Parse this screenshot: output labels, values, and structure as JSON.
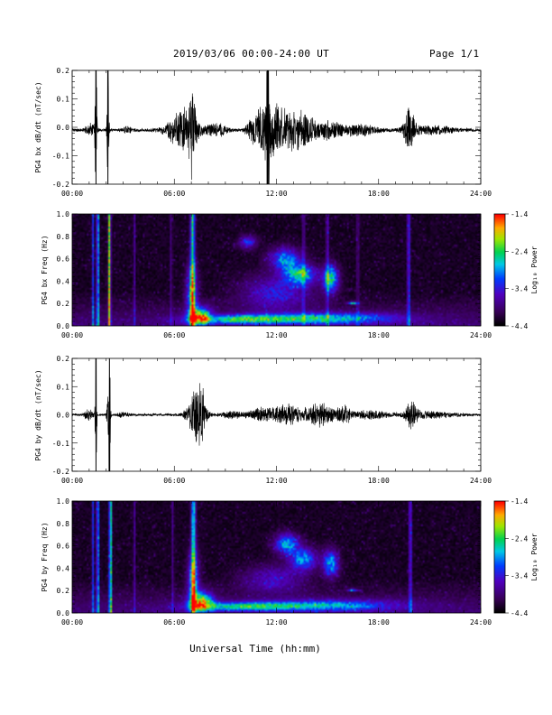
{
  "page": {
    "title": "2019/03/06  00:00-24:00 UT",
    "page_number": "Page 1/1"
  },
  "colors": {
    "background": "#ffffff",
    "trace": "#000000",
    "spectrogram_floor": "#000000"
  },
  "chart_data": [
    {
      "type": "line",
      "panel": "bx-waveform",
      "ylabel": "PG4 bx dB/dt (nT/sec)",
      "xlim_hours": [
        0,
        24
      ],
      "ylim": [
        -0.2,
        0.2
      ],
      "y_ticks": [
        "-0.2",
        "-0.1",
        "0.0",
        "0.1",
        "0.2"
      ],
      "x_ticks": [
        "00:00",
        "06:00",
        "12:00",
        "18:00",
        "24:00"
      ],
      "baseline": -0.01,
      "noise": 0.006,
      "bursts": [
        {
          "t": 1.1,
          "width": 0.4,
          "amp": 0.025
        },
        {
          "t": 1.4,
          "width": 0.08,
          "amp": 0.3,
          "clip": true
        },
        {
          "t": 2.1,
          "width": 0.08,
          "amp": 0.3,
          "clip": true
        },
        {
          "t": 3.2,
          "width": 0.4,
          "amp": 0.012
        },
        {
          "t": 6.5,
          "width": 1.2,
          "amp": 0.08
        },
        {
          "t": 7.05,
          "width": 0.25,
          "amp": 0.17
        },
        {
          "t": 8.5,
          "width": 0.8,
          "amp": 0.025
        },
        {
          "t": 10.6,
          "width": 0.5,
          "amp": 0.04
        },
        {
          "t": 11.35,
          "width": 0.8,
          "amp": 0.09
        },
        {
          "t": 11.5,
          "width": 0.12,
          "amp": 0.28,
          "clip": true
        },
        {
          "t": 12.2,
          "width": 1.0,
          "amp": 0.07
        },
        {
          "t": 13.5,
          "width": 1.3,
          "amp": 0.07
        },
        {
          "t": 15.2,
          "width": 0.8,
          "amp": 0.035
        },
        {
          "t": 16.8,
          "width": 1.5,
          "amp": 0.02
        },
        {
          "t": 19.8,
          "width": 0.45,
          "amp": 0.08
        },
        {
          "t": 21.0,
          "width": 2.0,
          "amp": 0.015
        }
      ]
    },
    {
      "type": "heatmap",
      "panel": "bx-spectrogram",
      "ylabel": "PG4 bx Freq (Hz)",
      "xlim_hours": [
        0,
        24
      ],
      "ylim": [
        0,
        1.0
      ],
      "y_ticks": [
        "0.0",
        "0.2",
        "0.4",
        "0.6",
        "0.8",
        "1.0"
      ],
      "x_ticks": [
        "00:00",
        "06:00",
        "12:00",
        "18:00",
        "24:00"
      ],
      "colorbar": {
        "label": "Log₁₀ Power",
        "range": [
          -4.4,
          -1.4
        ],
        "ticks": [
          "-1.4",
          "-2.4",
          "-3.4",
          "-4.4"
        ]
      },
      "stripes": [
        {
          "t": 1.15,
          "width": 0.05,
          "level": 0.45
        },
        {
          "t": 1.45,
          "width": 0.06,
          "level": 0.8
        },
        {
          "t": 2.15,
          "width": 0.07,
          "level": 0.85
        },
        {
          "t": 3.6,
          "width": 0.05,
          "level": 0.25
        },
        {
          "t": 5.8,
          "width": 0.05,
          "level": 0.25
        },
        {
          "t": 7.05,
          "width": 0.13,
          "level": 0.65
        },
        {
          "t": 13.6,
          "width": 0.06,
          "level": 0.3
        },
        {
          "t": 15.0,
          "width": 0.06,
          "level": 0.35
        },
        {
          "t": 16.8,
          "width": 0.05,
          "level": 0.3
        },
        {
          "t": 19.8,
          "width": 0.08,
          "level": 0.4
        }
      ],
      "blobs": [
        {
          "t": 7.5,
          "f": 0.08,
          "st": 0.6,
          "sf": 0.08,
          "level": 0.85
        },
        {
          "t": 7.0,
          "f": 0.3,
          "st": 0.35,
          "sf": 0.25,
          "level": 0.5
        },
        {
          "t": 10.0,
          "f": 0.05,
          "st": 3.0,
          "sf": 0.04,
          "level": 0.6
        },
        {
          "t": 15.0,
          "f": 0.06,
          "st": 4.0,
          "sf": 0.05,
          "level": 0.55
        },
        {
          "t": 12.5,
          "f": 0.6,
          "st": 0.9,
          "sf": 0.1,
          "level": 0.55
        },
        {
          "t": 13.4,
          "f": 0.46,
          "st": 0.9,
          "sf": 0.09,
          "level": 0.68
        },
        {
          "t": 15.2,
          "f": 0.42,
          "st": 0.45,
          "sf": 0.12,
          "level": 0.7
        },
        {
          "t": 10.3,
          "f": 0.75,
          "st": 0.5,
          "sf": 0.06,
          "level": 0.4
        },
        {
          "t": 12.0,
          "f": 0.3,
          "st": 2.0,
          "sf": 0.15,
          "level": 0.35
        },
        {
          "t": 16.5,
          "f": 0.2,
          "st": 0.3,
          "sf": 0.01,
          "level": 0.65
        }
      ]
    },
    {
      "type": "line",
      "panel": "by-waveform",
      "ylabel": "PG4 by dB/dt (nT/sec)",
      "xlim_hours": [
        0,
        24
      ],
      "ylim": [
        -0.2,
        0.2
      ],
      "y_ticks": [
        "-0.2",
        "-0.1",
        "0.0",
        "0.1",
        "0.2"
      ],
      "x_ticks": [
        "00:00",
        "06:00",
        "12:00",
        "18:00",
        "24:00"
      ],
      "baseline": 0.0,
      "noise": 0.005,
      "bursts": [
        {
          "t": 1.0,
          "width": 0.4,
          "amp": 0.02
        },
        {
          "t": 1.4,
          "width": 0.06,
          "amp": 0.3,
          "clip": true
        },
        {
          "t": 2.15,
          "width": 0.12,
          "amp": 0.2
        },
        {
          "t": 2.2,
          "width": 0.05,
          "amp": 0.3,
          "clip": true
        },
        {
          "t": 3.0,
          "width": 0.4,
          "amp": 0.01
        },
        {
          "t": 7.3,
          "width": 0.7,
          "amp": 0.1
        },
        {
          "t": 7.6,
          "width": 0.25,
          "amp": 0.06
        },
        {
          "t": 9.5,
          "width": 1.0,
          "amp": 0.012
        },
        {
          "t": 11.0,
          "width": 0.8,
          "amp": 0.025
        },
        {
          "t": 12.5,
          "width": 1.3,
          "amp": 0.04
        },
        {
          "t": 14.5,
          "width": 1.2,
          "amp": 0.045
        },
        {
          "t": 16.0,
          "width": 0.6,
          "amp": 0.03
        },
        {
          "t": 17.5,
          "width": 1.5,
          "amp": 0.015
        },
        {
          "t": 19.9,
          "width": 0.45,
          "amp": 0.06
        },
        {
          "t": 21.0,
          "width": 2.0,
          "amp": 0.012
        }
      ]
    },
    {
      "type": "heatmap",
      "panel": "by-spectrogram",
      "ylabel": "PG4 by Freq (Hz)",
      "xlim_hours": [
        0,
        24
      ],
      "ylim": [
        0,
        1.0
      ],
      "y_ticks": [
        "0.0",
        "0.2",
        "0.4",
        "0.6",
        "0.8",
        "1.0"
      ],
      "x_ticks": [
        "00:00",
        "06:00",
        "12:00",
        "18:00",
        "24:00"
      ],
      "colorbar": {
        "label": "Log₁₀ Power",
        "range": [
          -4.4,
          -1.4
        ],
        "ticks": [
          "-1.4",
          "-2.4",
          "-3.4",
          "-4.4"
        ]
      },
      "stripes": [
        {
          "t": 1.15,
          "width": 0.05,
          "level": 0.45
        },
        {
          "t": 1.45,
          "width": 0.06,
          "level": 0.75
        },
        {
          "t": 2.2,
          "width": 0.07,
          "level": 0.85
        },
        {
          "t": 3.6,
          "width": 0.05,
          "level": 0.25
        },
        {
          "t": 5.9,
          "width": 0.05,
          "level": 0.25
        },
        {
          "t": 7.1,
          "width": 0.13,
          "level": 0.6
        },
        {
          "t": 19.9,
          "width": 0.08,
          "level": 0.4
        }
      ],
      "blobs": [
        {
          "t": 7.6,
          "f": 0.09,
          "st": 0.65,
          "sf": 0.09,
          "level": 0.85
        },
        {
          "t": 7.1,
          "f": 0.3,
          "st": 0.35,
          "sf": 0.25,
          "level": 0.5
        },
        {
          "t": 10.0,
          "f": 0.05,
          "st": 3.0,
          "sf": 0.04,
          "level": 0.55
        },
        {
          "t": 15.0,
          "f": 0.06,
          "st": 4.0,
          "sf": 0.05,
          "level": 0.5
        },
        {
          "t": 12.6,
          "f": 0.62,
          "st": 0.7,
          "sf": 0.09,
          "level": 0.6
        },
        {
          "t": 13.6,
          "f": 0.48,
          "st": 0.8,
          "sf": 0.1,
          "level": 0.55
        },
        {
          "t": 15.2,
          "f": 0.44,
          "st": 0.45,
          "sf": 0.12,
          "level": 0.6
        },
        {
          "t": 11.8,
          "f": 0.3,
          "st": 1.8,
          "sf": 0.12,
          "level": 0.3
        },
        {
          "t": 16.5,
          "f": 0.2,
          "st": 0.3,
          "sf": 0.01,
          "level": 0.65
        }
      ]
    }
  ],
  "x_axis": {
    "label": "Universal Time (hh:mm)"
  }
}
